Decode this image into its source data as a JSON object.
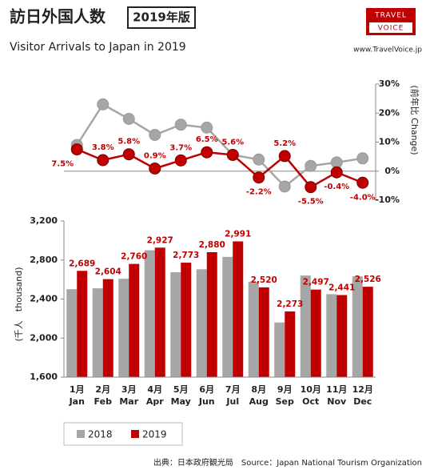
{
  "header": {
    "title": "訪日外国人数",
    "badge": "2019年版",
    "subtitle": "Visitor Arrivals to Japan in 2019",
    "logo_top": "TRAVEL",
    "logo_bottom": "VOICE",
    "url": "www.TravelVoice.jp"
  },
  "source": "出典：日本政府観光局　Source：Japan National Tourism Organization",
  "chart_data": [
    {
      "type": "line",
      "y_label": "(前年比 Change)",
      "ylim": [
        -10,
        30
      ],
      "yticks": [
        {
          "value": 30,
          "label": "30%"
        },
        {
          "value": 20,
          "label": "20%"
        },
        {
          "value": 10,
          "label": "10%"
        },
        {
          "value": 0,
          "label": "0%"
        },
        {
          "value": -10,
          "label": "-10%"
        }
      ],
      "series": [
        {
          "color": "#a6a6a6",
          "values": [
            9,
            23,
            18,
            12.5,
            16,
            15,
            5.6,
            4,
            -5.3,
            1.8,
            3,
            4.4
          ]
        },
        {
          "color": "#c00000",
          "values": [
            7.5,
            3.8,
            5.8,
            0.9,
            3.7,
            6.5,
            5.6,
            -2.2,
            5.2,
            -5.5,
            -0.4,
            -4.0
          ],
          "value_labels": [
            "7.5%",
            "3.8%",
            "5.8%",
            "0.9%",
            "3.7%",
            "6.5%",
            "5.6%",
            "-2.2%",
            "5.2%",
            "-5.5%",
            "-0.4%",
            "-4.0%"
          ]
        }
      ]
    },
    {
      "type": "bar",
      "y_label": "(千人　thousand)",
      "categories": [
        "1月",
        "2月",
        "3月",
        "4月",
        "5月",
        "6月",
        "7月",
        "8月",
        "9月",
        "10月",
        "11月",
        "12月"
      ],
      "categories_en": [
        "Jan",
        "Feb",
        "Mar",
        "Apr",
        "May",
        "Jun",
        "Jul",
        "Aug",
        "Sep",
        "Oct",
        "Nov",
        "Dec"
      ],
      "ylim": [
        1600,
        3200
      ],
      "yticks": [
        {
          "value": 1600,
          "label": "1,600"
        },
        {
          "value": 2000,
          "label": "2,000"
        },
        {
          "value": 2400,
          "label": "2,400"
        },
        {
          "value": 2800,
          "label": "2,800"
        },
        {
          "value": 3200,
          "label": "3,200"
        }
      ],
      "series": [
        {
          "name": "2018",
          "color": "#a6a6a6",
          "values": [
            2501,
            2510,
            2608,
            2900,
            2675,
            2705,
            2832,
            2578,
            2160,
            2641,
            2450,
            2632
          ]
        },
        {
          "name": "2019",
          "color": "#c00000",
          "values": [
            2689,
            2604,
            2760,
            2927,
            2773,
            2880,
            2991,
            2520,
            2273,
            2497,
            2441,
            2526
          ],
          "value_labels": [
            "2,689",
            "2,604",
            "2,760",
            "2,927",
            "2,773",
            "2,880",
            "2,991",
            "2,520",
            "2,273",
            "2,497",
            "2,441",
            "2,526"
          ]
        }
      ]
    }
  ]
}
